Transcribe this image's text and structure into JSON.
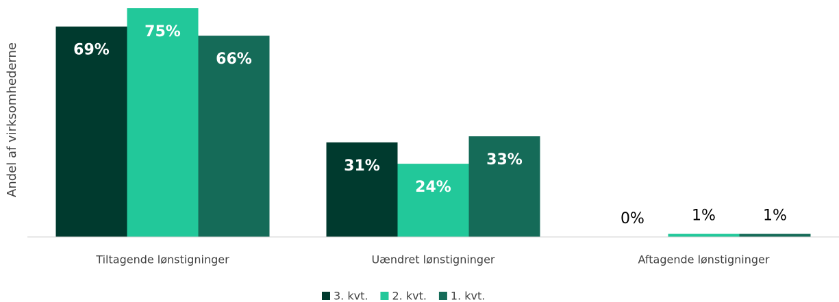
{
  "chart_data": {
    "type": "bar",
    "y_label": "Andel af virksomhederne",
    "categories": [
      "Tiltagende lønstigninger",
      "Uændret lønstigninger",
      "Aftagende lønstigninger"
    ],
    "series": [
      {
        "name": "3. kvt.",
        "color": "#003a2e",
        "values": [
          69,
          31,
          0
        ],
        "value_labels": [
          "69%",
          "31%",
          "0%"
        ]
      },
      {
        "name": "2. kvt.",
        "color": "#22c89a",
        "values": [
          75,
          24,
          1
        ],
        "value_labels": [
          "75%",
          "24%",
          "1%"
        ]
      },
      {
        "name": "1. kvt.",
        "color": "#156b58",
        "values": [
          66,
          33,
          1
        ],
        "value_labels": [
          "66%",
          "33%",
          "1%"
        ]
      }
    ],
    "ylim": [
      0,
      75
    ],
    "legend": "bottom"
  }
}
